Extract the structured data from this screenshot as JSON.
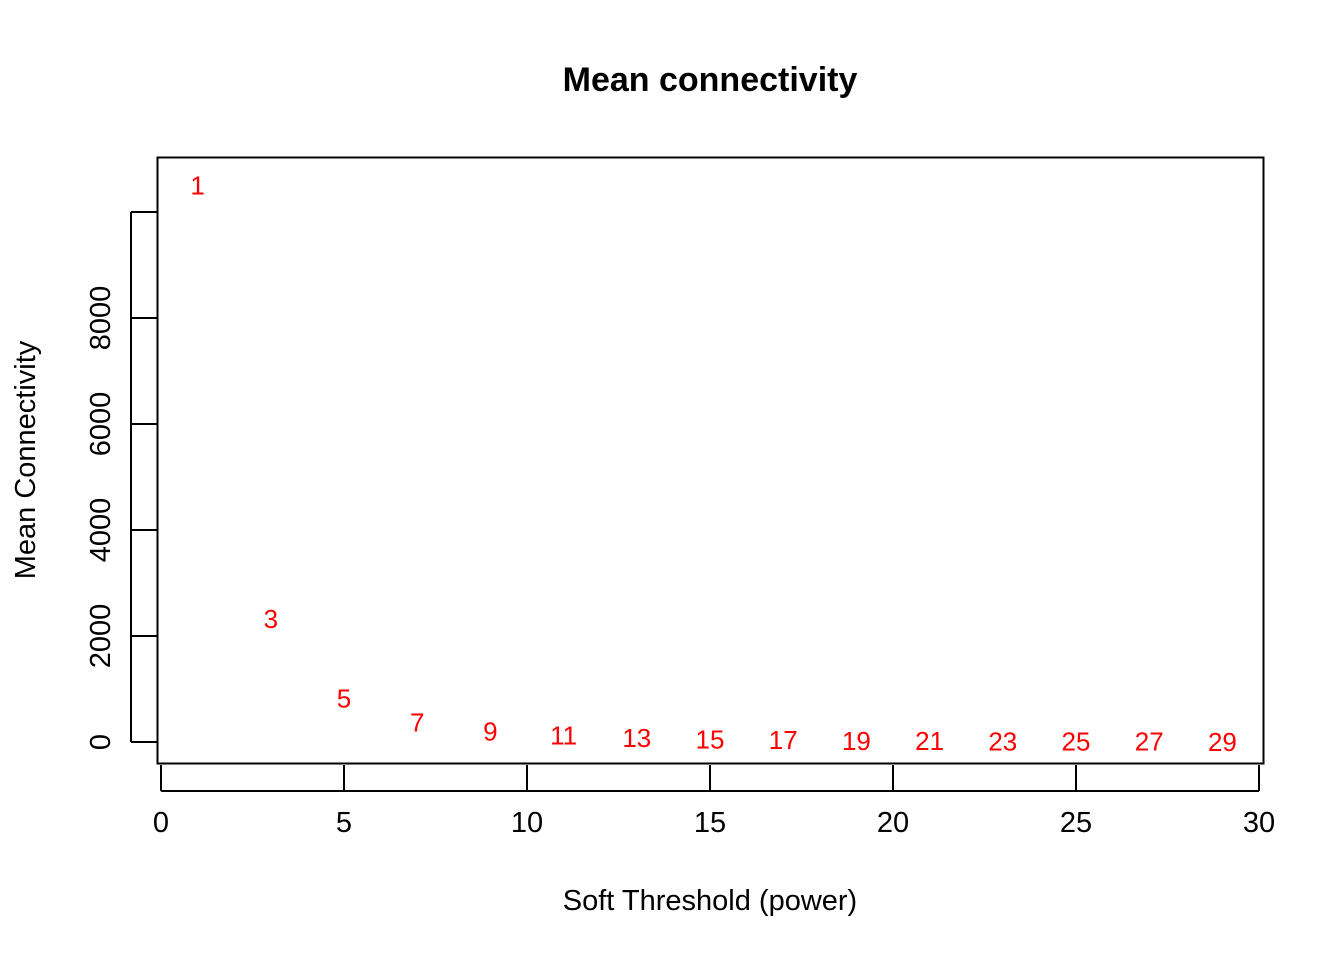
{
  "chart_data": {
    "type": "scatter",
    "title": "Mean connectivity",
    "xlabel": "Soft Threshold (power)",
    "ylabel": "Mean Connectivity",
    "xlim": [
      0,
      30
    ],
    "ylim": [
      0,
      10000
    ],
    "x_ticks": [
      0,
      5,
      10,
      15,
      20,
      25,
      30
    ],
    "y_ticks": [
      0,
      2000,
      4000,
      6000,
      8000
    ],
    "grid": false,
    "marker": "text-labels",
    "point_color": "#ff0000",
    "axis_color": "#000000",
    "series": [
      {
        "x": [
          1,
          3,
          5,
          7,
          9,
          11,
          13,
          15,
          17,
          19,
          21,
          23,
          25,
          27,
          29
        ],
        "y": [
          10500,
          2320,
          820,
          370,
          200,
          120,
          75,
          50,
          35,
          22,
          15,
          10,
          8,
          5,
          4
        ],
        "labels": [
          "1",
          "3",
          "5",
          "7",
          "9",
          "11",
          "13",
          "15",
          "17",
          "19",
          "21",
          "23",
          "25",
          "27",
          "29"
        ]
      }
    ]
  }
}
